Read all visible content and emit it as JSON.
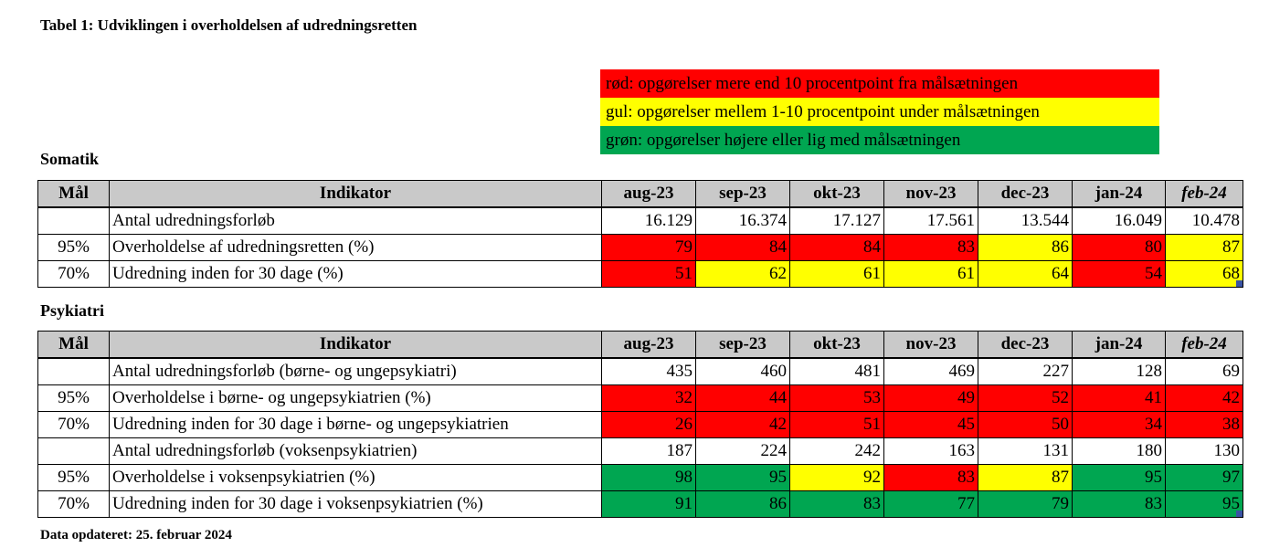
{
  "title": "Tabel 1: Udviklingen i overholdelsen af udredningsretten",
  "legend": {
    "items": [
      {
        "key": "red",
        "color": "#FF0000",
        "label": "rød: opgørelser mere end 10 procentpoint fra målsætningen"
      },
      {
        "key": "yellow",
        "color": "#FFFF00",
        "label": "gul: opgørelser mellem 1-10 procentpoint under målsætningen"
      },
      {
        "key": "green",
        "color": "#00A651",
        "label": "grøn: opgørelser højere eller lig med målsætningen"
      }
    ]
  },
  "status_colors": {
    "red": "#FF0000",
    "yellow": "#FFFF00",
    "green": "#00A651",
    "none": "#FFFFFF"
  },
  "header_bg": "#C9C9C9",
  "columns": [
    {
      "label": "Mål",
      "italic": false
    },
    {
      "label": "Indikator",
      "italic": false
    },
    {
      "label": "aug-23",
      "italic": false
    },
    {
      "label": "sep-23",
      "italic": false
    },
    {
      "label": "okt-23",
      "italic": false
    },
    {
      "label": "nov-23",
      "italic": false
    },
    {
      "label": "dec-23",
      "italic": false
    },
    {
      "label": "jan-24",
      "italic": false
    },
    {
      "label": "feb-24",
      "italic": true
    }
  ],
  "tables": [
    {
      "name": "Somatik",
      "rows": [
        {
          "maal": "",
          "indikator": "Antal udredningsforløb",
          "values": [
            "16.129",
            "16.374",
            "17.127",
            "17.561",
            "13.544",
            "16.049",
            "10.478"
          ],
          "colors": [
            "none",
            "none",
            "none",
            "none",
            "none",
            "none",
            "none"
          ]
        },
        {
          "maal": "95%",
          "indikator": "Overholdelse af udredningsretten (%)",
          "values": [
            "79",
            "84",
            "84",
            "83",
            "86",
            "80",
            "87"
          ],
          "colors": [
            "red",
            "red",
            "red",
            "red",
            "yellow",
            "red",
            "yellow"
          ]
        },
        {
          "maal": "70%",
          "indikator": "Udredning inden for 30 dage (%)",
          "values": [
            "51",
            "62",
            "61",
            "61",
            "64",
            "54",
            "68"
          ],
          "colors": [
            "red",
            "yellow",
            "yellow",
            "yellow",
            "yellow",
            "red",
            "yellow"
          ]
        }
      ]
    },
    {
      "name": "Psykiatri",
      "rows": [
        {
          "maal": "",
          "indikator": "Antal udredningsforløb (børne- og ungepsykiatri)",
          "values": [
            "435",
            "460",
            "481",
            "469",
            "227",
            "128",
            "69"
          ],
          "colors": [
            "none",
            "none",
            "none",
            "none",
            "none",
            "none",
            "none"
          ]
        },
        {
          "maal": "95%",
          "indikator": "Overholdelse i børne- og ungepsykiatrien (%)",
          "values": [
            "32",
            "44",
            "53",
            "49",
            "52",
            "41",
            "42"
          ],
          "colors": [
            "red",
            "red",
            "red",
            "red",
            "red",
            "red",
            "red"
          ]
        },
        {
          "maal": "70%",
          "indikator": "Udredning inden for 30 dage i børne- og ungepsykiatrien",
          "values": [
            "26",
            "42",
            "51",
            "45",
            "50",
            "34",
            "38"
          ],
          "colors": [
            "red",
            "red",
            "red",
            "red",
            "red",
            "red",
            "red"
          ]
        },
        {
          "maal": "",
          "indikator": "Antal udredningsforløb (voksenpsykiatrien)",
          "values": [
            "187",
            "224",
            "242",
            "163",
            "131",
            "180",
            "130"
          ],
          "colors": [
            "none",
            "none",
            "none",
            "none",
            "none",
            "none",
            "none"
          ]
        },
        {
          "maal": "95%",
          "indikator": "Overholdelse i voksenpsykiatrien (%)",
          "values": [
            "98",
            "95",
            "92",
            "83",
            "87",
            "95",
            "97"
          ],
          "colors": [
            "green",
            "green",
            "yellow",
            "red",
            "yellow",
            "green",
            "green"
          ]
        },
        {
          "maal": "70%",
          "indikator": "Udredning inden for 30 dage i voksenpsykiatrien (%)",
          "values": [
            "91",
            "86",
            "83",
            "77",
            "79",
            "83",
            "95"
          ],
          "colors": [
            "green",
            "green",
            "green",
            "green",
            "green",
            "green",
            "green"
          ]
        }
      ]
    }
  ],
  "footer": "Data opdateret: 25. februar 2024"
}
